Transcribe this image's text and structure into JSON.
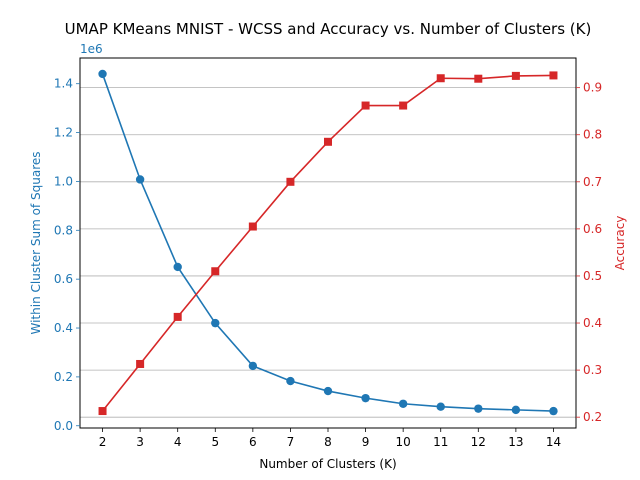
{
  "chart_data": {
    "type": "line",
    "title": "UMAP KMeans MNIST - WCSS and Accuracy vs. Number of Clusters (K)",
    "xlabel": "Number of Clusters (K)",
    "x": [
      2,
      3,
      4,
      5,
      6,
      7,
      8,
      9,
      10,
      11,
      12,
      13,
      14
    ],
    "xlim": [
      1.4,
      14.6
    ],
    "grid": "horizontal (right axis)",
    "left_axis": {
      "label": "Within Cluster Sum of Squares",
      "offset_label": "1e6",
      "ylim": [
        -0.0092,
        1.5052
      ],
      "ticks": [
        0.0,
        0.2,
        0.4,
        0.6,
        0.8,
        1.0,
        1.2,
        1.4
      ],
      "tick_labels": [
        "0.0",
        "0.2",
        "0.4",
        "0.6",
        "0.8",
        "1.0",
        "1.2",
        "1.4"
      ],
      "color": "#1f77b4"
    },
    "right_axis": {
      "label": "Accuracy",
      "ylim": [
        0.177,
        0.963
      ],
      "ticks": [
        0.2,
        0.3,
        0.4,
        0.5,
        0.6,
        0.7,
        0.8,
        0.9
      ],
      "tick_labels": [
        "0.2",
        "0.3",
        "0.4",
        "0.5",
        "0.6",
        "0.7",
        "0.8",
        "0.9"
      ],
      "color": "#d62728"
    },
    "series": [
      {
        "axis": "left",
        "color": "#1f77b4",
        "marker": "circle",
        "values": [
          1.44,
          1.008,
          0.65,
          0.42,
          0.245,
          0.183,
          0.142,
          0.113,
          0.09,
          0.078,
          0.07,
          0.065,
          0.06
        ]
      },
      {
        "axis": "right",
        "color": "#d62728",
        "marker": "square",
        "values": [
          0.213,
          0.313,
          0.413,
          0.51,
          0.605,
          0.7,
          0.785,
          0.862,
          0.862,
          0.92,
          0.919,
          0.925,
          0.926
        ]
      }
    ]
  }
}
